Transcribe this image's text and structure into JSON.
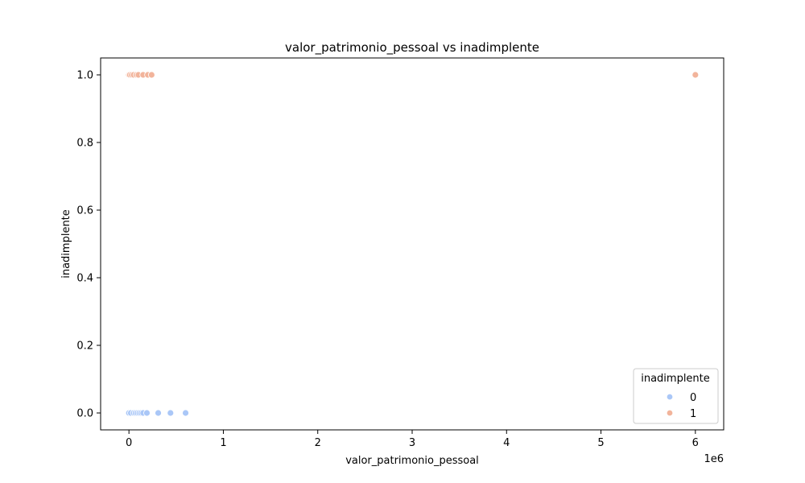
{
  "chart_data": {
    "type": "scatter",
    "title": "valor_patrimonio_pessoal vs inadimplente",
    "xlabel": "valor_patrimonio_pessoal",
    "ylabel": "inadimplente",
    "x_offset_label": "1e6",
    "x_scale_note": "x values shown in units of 1e6",
    "xlim": [
      -0.3,
      6.3
    ],
    "ylim": [
      -0.05,
      1.05
    ],
    "x_ticks": [
      0,
      1,
      2,
      3,
      4,
      5,
      6
    ],
    "x_tick_labels": [
      "0",
      "1",
      "2",
      "3",
      "4",
      "5",
      "6"
    ],
    "y_ticks": [
      0.0,
      0.2,
      0.4,
      0.6,
      0.8,
      1.0
    ],
    "y_tick_labels": [
      "0.0",
      "0.2",
      "0.4",
      "0.6",
      "0.8",
      "1.0"
    ],
    "grid": false,
    "legend": {
      "title": "inadimplente",
      "placement": "bottom-right"
    },
    "series": [
      {
        "name": "0",
        "color": "#aac7f7",
        "points": [
          {
            "x": 0.0,
            "y": 0
          },
          {
            "x": 0.02,
            "y": 0
          },
          {
            "x": 0.05,
            "y": 0
          },
          {
            "x": 0.07,
            "y": 0
          },
          {
            "x": 0.09,
            "y": 0
          },
          {
            "x": 0.11,
            "y": 0
          },
          {
            "x": 0.13,
            "y": 0
          },
          {
            "x": 0.15,
            "y": 0
          },
          {
            "x": 0.19,
            "y": 0
          },
          {
            "x": 0.31,
            "y": 0
          },
          {
            "x": 0.44,
            "y": 0
          },
          {
            "x": 0.6,
            "y": 0
          }
        ]
      },
      {
        "name": "1",
        "color": "#f2b49b",
        "points": [
          {
            "x": 0.0,
            "y": 1
          },
          {
            "x": 0.01,
            "y": 1
          },
          {
            "x": 0.03,
            "y": 1
          },
          {
            "x": 0.05,
            "y": 1
          },
          {
            "x": 0.08,
            "y": 1
          },
          {
            "x": 0.1,
            "y": 1
          },
          {
            "x": 0.15,
            "y": 1
          },
          {
            "x": 0.2,
            "y": 1
          },
          {
            "x": 0.24,
            "y": 1
          },
          {
            "x": 6.0,
            "y": 1
          }
        ]
      }
    ]
  }
}
